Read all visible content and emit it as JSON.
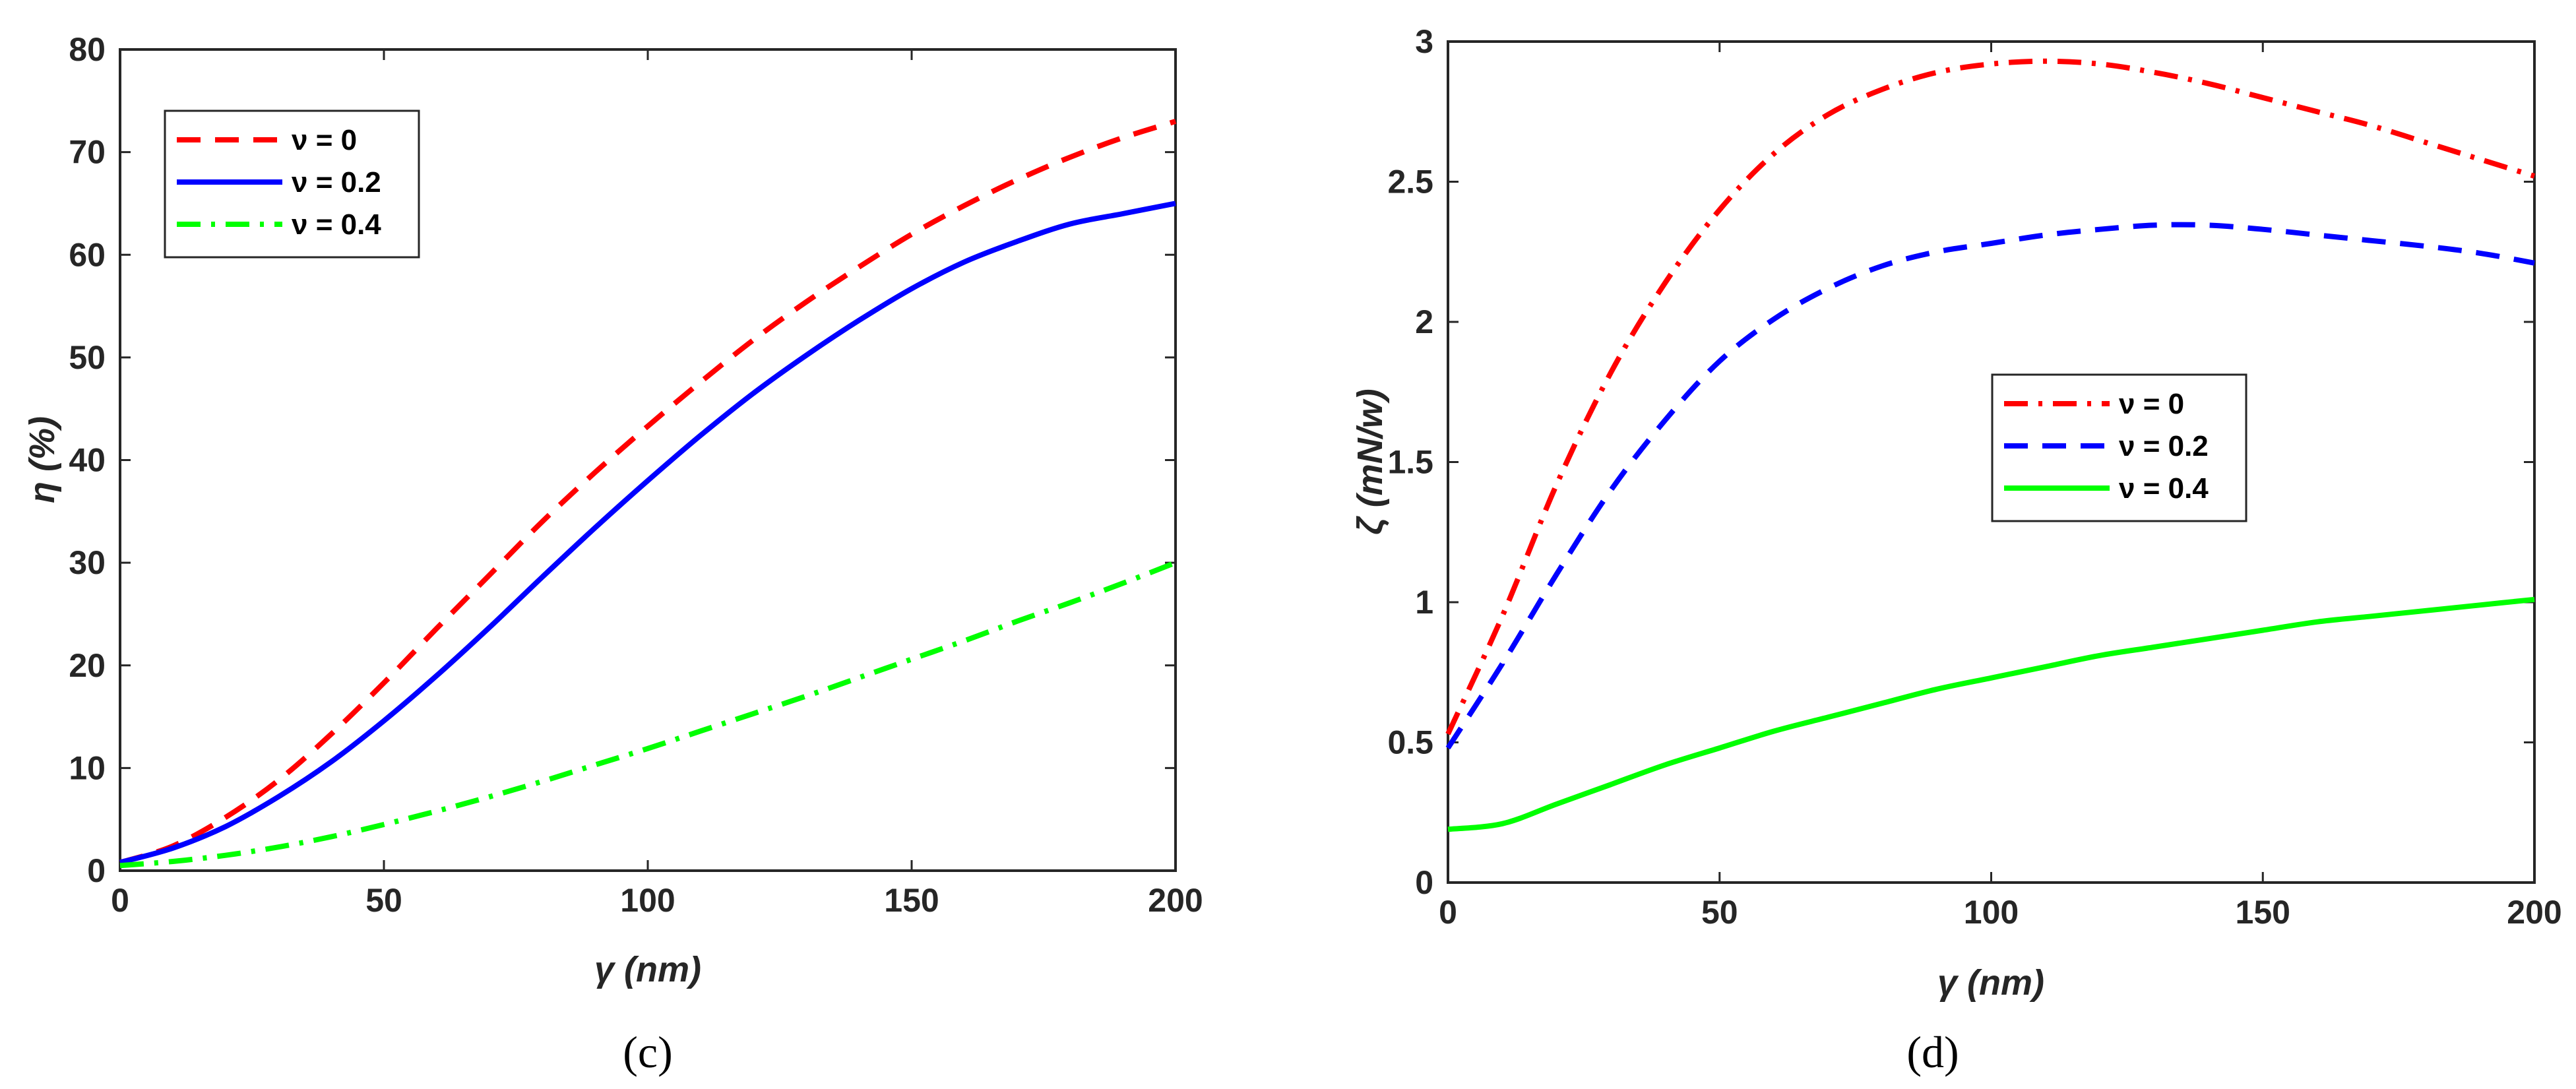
{
  "chart_data": [
    {
      "id": "c",
      "type": "line",
      "caption": "(c)",
      "xlabel": "γ (nm)",
      "ylabel": "η (%)",
      "xlim": [
        0,
        200
      ],
      "ylim": [
        0,
        80
      ],
      "xticks": [
        0,
        50,
        100,
        150,
        200
      ],
      "yticks": [
        0,
        10,
        20,
        30,
        40,
        50,
        60,
        70,
        80
      ],
      "legend_position": "top-left",
      "grid": false,
      "x": [
        0,
        10,
        20,
        30,
        40,
        50,
        60,
        70,
        80,
        90,
        100,
        110,
        120,
        130,
        140,
        150,
        160,
        170,
        180,
        190,
        200
      ],
      "series": [
        {
          "name": "ν = 0",
          "color": "#ff0000",
          "style": "dashed",
          "values": [
            0.8,
            2.4,
            5.2,
            8.8,
            13.3,
            18.3,
            23.6,
            28.8,
            34.0,
            38.8,
            43.3,
            47.6,
            51.7,
            55.4,
            58.8,
            62.0,
            64.8,
            67.3,
            69.5,
            71.4,
            73.0
          ]
        },
        {
          "name": "ν = 0.2",
          "color": "#0000ff",
          "style": "solid",
          "values": [
            0.8,
            2.2,
            4.3,
            7.2,
            10.6,
            14.6,
            19.0,
            23.7,
            28.6,
            33.4,
            38.0,
            42.4,
            46.5,
            50.2,
            53.6,
            56.7,
            59.3,
            61.3,
            63.0,
            64.0,
            65.0
          ]
        },
        {
          "name": "ν = 0.4",
          "color": "#00ff00",
          "style": "dashdot",
          "values": [
            0.5,
            0.9,
            1.5,
            2.3,
            3.3,
            4.5,
            5.8,
            7.2,
            8.7,
            10.3,
            11.9,
            13.6,
            15.3,
            17.0,
            18.8,
            20.6,
            22.4,
            24.3,
            26.1,
            28.0,
            30.0
          ]
        }
      ]
    },
    {
      "id": "d",
      "type": "line",
      "caption": "(d)",
      "xlabel": "γ (nm)",
      "ylabel": "ζ (mN/w)",
      "xlim": [
        0,
        200
      ],
      "ylim": [
        0,
        3
      ],
      "xticks": [
        0,
        50,
        100,
        150,
        200
      ],
      "yticks": [
        0,
        0.5,
        1,
        1.5,
        2,
        2.5,
        3
      ],
      "legend_position": "center-right",
      "grid": false,
      "x": [
        0,
        10,
        20,
        30,
        40,
        50,
        60,
        70,
        80,
        90,
        100,
        110,
        120,
        130,
        140,
        150,
        160,
        170,
        180,
        190,
        200
      ],
      "series": [
        {
          "name": "ν = 0",
          "color": "#ff0000",
          "style": "dashdot",
          "values": [
            0.53,
            0.95,
            1.42,
            1.82,
            2.14,
            2.4,
            2.6,
            2.74,
            2.83,
            2.89,
            2.92,
            2.93,
            2.92,
            2.89,
            2.85,
            2.8,
            2.75,
            2.7,
            2.64,
            2.58,
            2.52
          ]
        },
        {
          "name": "ν = 0.2",
          "color": "#0000ff",
          "style": "dashed",
          "values": [
            0.48,
            0.78,
            1.1,
            1.4,
            1.65,
            1.86,
            2.01,
            2.12,
            2.2,
            2.25,
            2.28,
            2.31,
            2.33,
            2.345,
            2.345,
            2.33,
            2.31,
            2.29,
            2.27,
            2.245,
            2.21
          ]
        },
        {
          "name": "ν = 0.4",
          "color": "#00ff00",
          "style": "solid",
          "values": [
            0.19,
            0.21,
            0.28,
            0.35,
            0.42,
            0.48,
            0.54,
            0.59,
            0.64,
            0.69,
            0.73,
            0.77,
            0.81,
            0.84,
            0.87,
            0.9,
            0.93,
            0.95,
            0.97,
            0.99,
            1.01
          ]
        }
      ]
    }
  ]
}
